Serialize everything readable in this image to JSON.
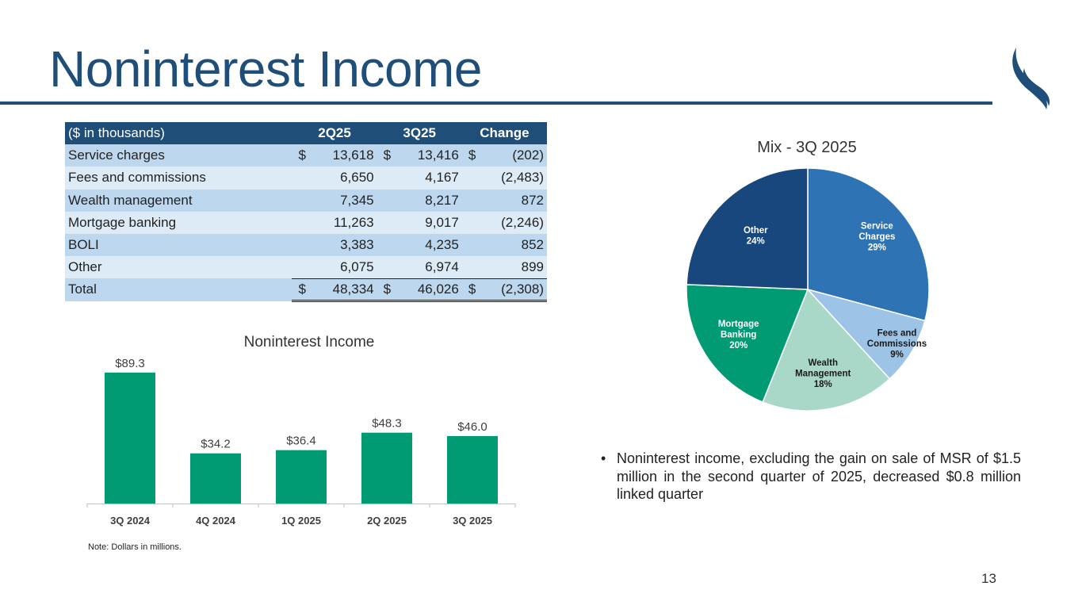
{
  "slide_title": "Noninterest Income",
  "page_number": "13",
  "table": {
    "headers": [
      "($ in thousands)",
      "2Q25",
      "3Q25",
      "Change"
    ],
    "rows": [
      {
        "label": "Service charges",
        "c1": {
          "sym": "$",
          "val": "13,618"
        },
        "c2": {
          "sym": "$",
          "val": "13,416"
        },
        "c3": {
          "sym": "$",
          "val": "(202)"
        }
      },
      {
        "label": "Fees and commissions",
        "c1": {
          "sym": "",
          "val": "6,650"
        },
        "c2": {
          "sym": "",
          "val": "4,167"
        },
        "c3": {
          "sym": "",
          "val": "(2,483)"
        }
      },
      {
        "label": "Wealth management",
        "c1": {
          "sym": "",
          "val": "7,345"
        },
        "c2": {
          "sym": "",
          "val": "8,217"
        },
        "c3": {
          "sym": "",
          "val": "872"
        }
      },
      {
        "label": "Mortgage banking",
        "c1": {
          "sym": "",
          "val": "11,263"
        },
        "c2": {
          "sym": "",
          "val": "9,017"
        },
        "c3": {
          "sym": "",
          "val": "(2,246)"
        }
      },
      {
        "label": "BOLI",
        "c1": {
          "sym": "",
          "val": "3,383"
        },
        "c2": {
          "sym": "",
          "val": "4,235"
        },
        "c3": {
          "sym": "",
          "val": "852"
        }
      },
      {
        "label": "Other",
        "c1": {
          "sym": "",
          "val": "6,075"
        },
        "c2": {
          "sym": "",
          "val": "6,974"
        },
        "c3": {
          "sym": "",
          "val": "899"
        }
      },
      {
        "label": "Total",
        "c1": {
          "sym": "$",
          "val": "48,334"
        },
        "c2": {
          "sym": "$",
          "val": "46,026"
        },
        "c3": {
          "sym": "$",
          "val": "(2,308)"
        }
      }
    ]
  },
  "chart_data": [
    {
      "type": "bar",
      "title": "Noninterest Income",
      "categories": [
        "3Q 2024",
        "4Q 2024",
        "1Q 2025",
        "2Q 2025",
        "3Q 2025"
      ],
      "values": [
        89.3,
        34.2,
        36.4,
        48.3,
        46.0
      ],
      "data_labels": [
        "$89.3",
        "$34.2",
        "$36.4",
        "$48.3",
        "$46.0"
      ],
      "ylim": [
        0,
        100
      ],
      "grid": false,
      "color": "#009a73"
    },
    {
      "type": "pie",
      "title": "Mix - 3Q 2025",
      "slices": [
        {
          "label": [
            "Service",
            "Charges",
            "29%"
          ],
          "value": 29.15,
          "color": "#2e74b5",
          "text_color": "#ffffff"
        },
        {
          "label": [
            "Fees and",
            "Commissions",
            "9%"
          ],
          "value": 9.05,
          "color": "#9dc3e6",
          "text_color": "#1a1a1a"
        },
        {
          "label": [
            "Wealth",
            "Management",
            "18%"
          ],
          "value": 17.85,
          "color": "#a9d8c9",
          "text_color": "#1a1a1a"
        },
        {
          "label": [
            "Mortgage",
            "Banking",
            "20%"
          ],
          "value": 19.59,
          "color": "#009a73",
          "text_color": "#ffffff"
        },
        {
          "label": [
            "Other",
            "24%"
          ],
          "value": 24.36,
          "color": "#17477d",
          "text_color": "#ffffff"
        }
      ]
    }
  ],
  "bullet_text": "Noninterest income, excluding the gain on sale of MSR of $1.5 million in the second quarter of 2025, decreased $0.8 million linked quarter",
  "note": "Note: Dollars in millions.",
  "colors": {
    "brand_navy": "#1f4e79",
    "bar_green": "#009a73"
  }
}
